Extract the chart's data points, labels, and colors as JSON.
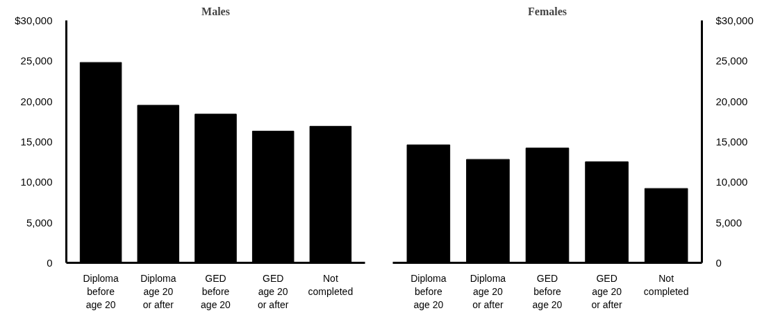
{
  "chart_data": [
    {
      "type": "bar",
      "title": "Males",
      "categories": [
        "Diploma\nbefore\nage 20",
        "Diploma\nage 20\nor after",
        "GED\nbefore\nage 20",
        "GED\nage 20\nor after",
        "Not\ncompleted"
      ],
      "values": [
        24800,
        19500,
        18400,
        16300,
        16900
      ],
      "color": "#000000",
      "ylim": [
        0,
        30000
      ],
      "yticks": [
        0,
        {
          "value": 5000,
          "label": "5,000"
        },
        {
          "value": 10000,
          "label": "10,000"
        },
        {
          "value": 15000,
          "label": "15,000"
        },
        {
          "value": 20000,
          "label": "20,000"
        },
        {
          "value": 25000,
          "label": "25,000"
        },
        {
          "value": 30000,
          "label": "$30,000"
        }
      ],
      "grid": false
    },
    {
      "type": "bar",
      "title": "Females",
      "categories": [
        "Diploma\nbefore\nage 20",
        "Diploma\nage 20\nor after",
        "GED\nbefore\nage 20",
        "GED\nage 20\nor after",
        "Not\ncompleted"
      ],
      "values": [
        14600,
        12800,
        14200,
        12500,
        9200
      ],
      "color": "#000000",
      "ylim": [
        0,
        30000
      ],
      "yticks": [
        0,
        {
          "value": 5000,
          "label": "5,000"
        },
        {
          "value": 10000,
          "label": "10,000"
        },
        {
          "value": 15000,
          "label": "15,000"
        },
        {
          "value": 20000,
          "label": "20,000"
        },
        {
          "value": 25000,
          "label": "25,000"
        },
        {
          "value": 30000,
          "label": "$30,000"
        }
      ],
      "grid": false
    }
  ]
}
